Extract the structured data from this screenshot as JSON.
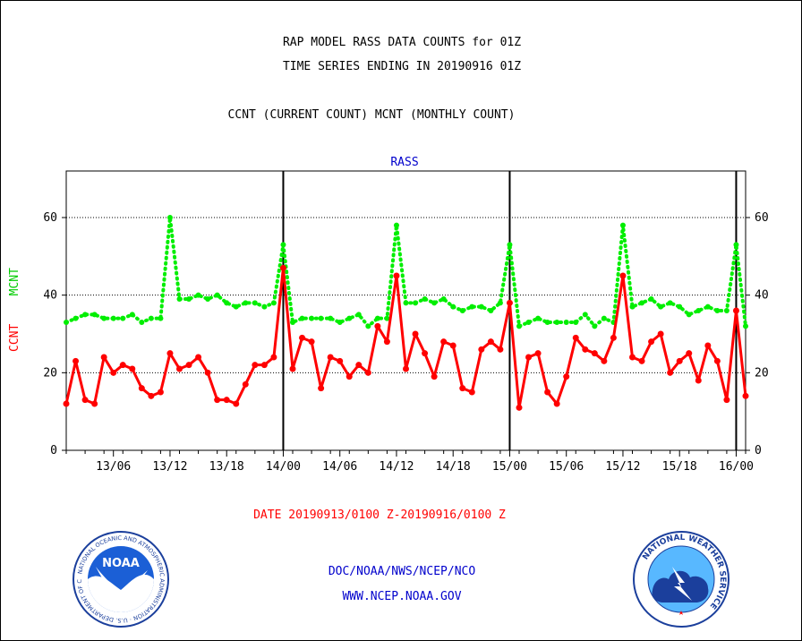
{
  "header": {
    "title_line1": "RAP MODEL RASS DATA COUNTS for 01Z",
    "title_line2": "TIME SERIES ENDING IN 20190916 01Z",
    "subtitle": "CCNT (CURRENT COUNT) MCNT (MONTHLY COUNT)"
  },
  "footer": {
    "date_range": "DATE 20190913/0100 Z-20190916/0100 Z",
    "link1": "DOC/NOAA/NWS/NCEP/NCO",
    "link2": "WWW.NCEP.NOAA.GOV"
  },
  "logos": {
    "noaa": {
      "text": "NOAA",
      "ring_text": "NATIONAL OCEANIC AND ATMOSPHERIC ADMINISTRATION · U.S. DEPARTMENT OF COMMERCE"
    },
    "nws": {
      "ring_text": "NATIONAL WEATHER SERVICE"
    }
  },
  "colors": {
    "ccnt": "#ff0000",
    "mcnt": "#00ee00",
    "panel_label": "#0000cc",
    "axes": "#000000"
  },
  "chart_data": {
    "type": "line",
    "panel_label": "RASS",
    "ylabel_left": {
      "ccnt": "CCNT",
      "mcnt": "MCNT"
    },
    "ylim": [
      0,
      72
    ],
    "yticks": [
      0,
      20,
      40,
      60
    ],
    "grid": true,
    "x_ticks": [
      "13/06",
      "13/12",
      "13/18",
      "14/00",
      "14/06",
      "14/12",
      "14/18",
      "15/00",
      "15/06",
      "15/12",
      "15/18",
      "16/00"
    ],
    "day_boundaries": [
      "14/00",
      "15/00",
      "16/00"
    ],
    "series": [
      {
        "name": "CCNT",
        "values": [
          12,
          23,
          13,
          12,
          24,
          20,
          22,
          21,
          16,
          14,
          15,
          25,
          21,
          22,
          24,
          20,
          13,
          13,
          12,
          17,
          22,
          22,
          24,
          47,
          21,
          29,
          28,
          16,
          24,
          23,
          19,
          22,
          20,
          32,
          28,
          45,
          21,
          30,
          25,
          19,
          28,
          27,
          16,
          15,
          26,
          28,
          26,
          38,
          11,
          24,
          25,
          15,
          12,
          19,
          29,
          26,
          25,
          23,
          29,
          45,
          24,
          23,
          28,
          30,
          20,
          23,
          25,
          18,
          27,
          23,
          13,
          36,
          14
        ]
      },
      {
        "name": "MCNT",
        "values": [
          33,
          34,
          35,
          35,
          34,
          34,
          34,
          35,
          33,
          34,
          34,
          60,
          39,
          39,
          40,
          39,
          40,
          38,
          37,
          38,
          38,
          37,
          38,
          53,
          33,
          34,
          34,
          34,
          34,
          33,
          34,
          35,
          32,
          34,
          34,
          58,
          38,
          38,
          39,
          38,
          39,
          37,
          36,
          37,
          37,
          36,
          38,
          53,
          32,
          33,
          34,
          33,
          33,
          33,
          33,
          35,
          32,
          34,
          33,
          58,
          37,
          38,
          39,
          37,
          38,
          37,
          35,
          36,
          37,
          36,
          36,
          53,
          32
        ]
      }
    ]
  }
}
